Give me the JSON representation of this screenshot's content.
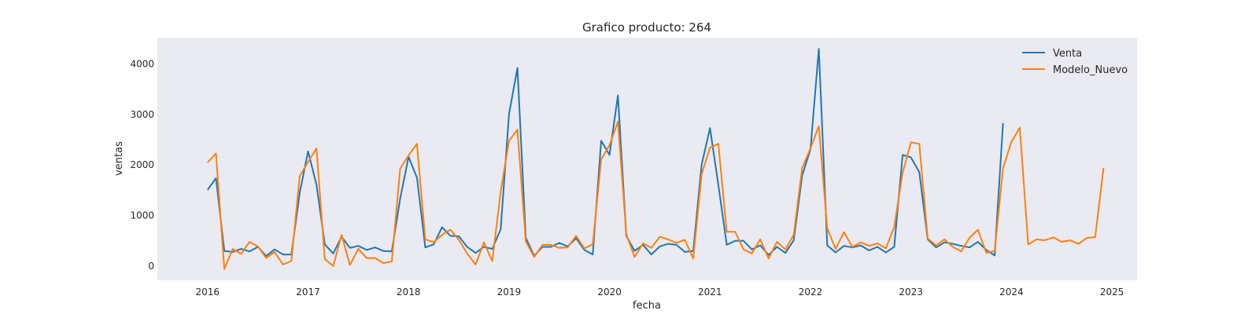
{
  "chart_data": {
    "type": "line",
    "title": "Grafico producto: 264",
    "xlabel": "fecha",
    "ylabel": "ventas",
    "x_ticks": [
      "2016",
      "2017",
      "2018",
      "2019",
      "2020",
      "2021",
      "2022",
      "2023",
      "2024",
      "2025"
    ],
    "y_ticks": [
      0,
      1000,
      2000,
      3000,
      4000
    ],
    "xlim": [
      "2015-07-01",
      "2025-04-01"
    ],
    "ylim": [
      -280,
      4520
    ],
    "grid": false,
    "legend_position": "top-right",
    "background": "#eaeaf2",
    "series": [
      {
        "name": "Venta",
        "color": "#1f77b4",
        "start": "2016-01",
        "values": [
          1510,
          1740,
          300,
          280,
          340,
          290,
          380,
          200,
          330,
          230,
          230,
          1450,
          2270,
          1610,
          430,
          250,
          580,
          360,
          400,
          320,
          370,
          300,
          290,
          1340,
          2160,
          1750,
          370,
          430,
          770,
          600,
          590,
          380,
          260,
          380,
          340,
          730,
          3010,
          3920,
          560,
          200,
          380,
          380,
          460,
          390,
          550,
          320,
          230,
          2480,
          2200,
          3380,
          600,
          300,
          420,
          230,
          390,
          440,
          420,
          280,
          300,
          2010,
          2730,
          1610,
          420,
          500,
          500,
          330,
          410,
          220,
          380,
          260,
          510,
          1790,
          2310,
          4300,
          410,
          270,
          400,
          370,
          410,
          310,
          380,
          270,
          380,
          2200,
          2150,
          1860,
          530,
          370,
          470,
          440,
          400,
          370,
          480,
          320,
          210,
          2830
        ]
      },
      {
        "name": "Modelo_Nuevo",
        "color": "#ff7f0e",
        "start": "2016-01",
        "values": [
          2050,
          2230,
          -60,
          340,
          240,
          480,
          390,
          160,
          280,
          30,
          100,
          1780,
          2060,
          2330,
          140,
          0,
          620,
          20,
          340,
          160,
          160,
          60,
          90,
          1930,
          2190,
          2420,
          530,
          470,
          620,
          720,
          520,
          250,
          30,
          470,
          100,
          1470,
          2480,
          2700,
          490,
          180,
          420,
          420,
          360,
          370,
          600,
          350,
          430,
          2110,
          2390,
          2860,
          630,
          180,
          450,
          360,
          580,
          530,
          460,
          520,
          150,
          1820,
          2340,
          2420,
          680,
          680,
          330,
          250,
          530,
          150,
          480,
          330,
          620,
          1940,
          2330,
          2770,
          750,
          340,
          670,
          380,
          470,
          400,
          450,
          350,
          770,
          1850,
          2450,
          2420,
          550,
          410,
          530,
          380,
          290,
          560,
          720,
          260,
          300,
          1940,
          2460,
          2740,
          430,
          530,
          510,
          570,
          480,
          510,
          440,
          560,
          570,
          1940
        ]
      }
    ]
  }
}
